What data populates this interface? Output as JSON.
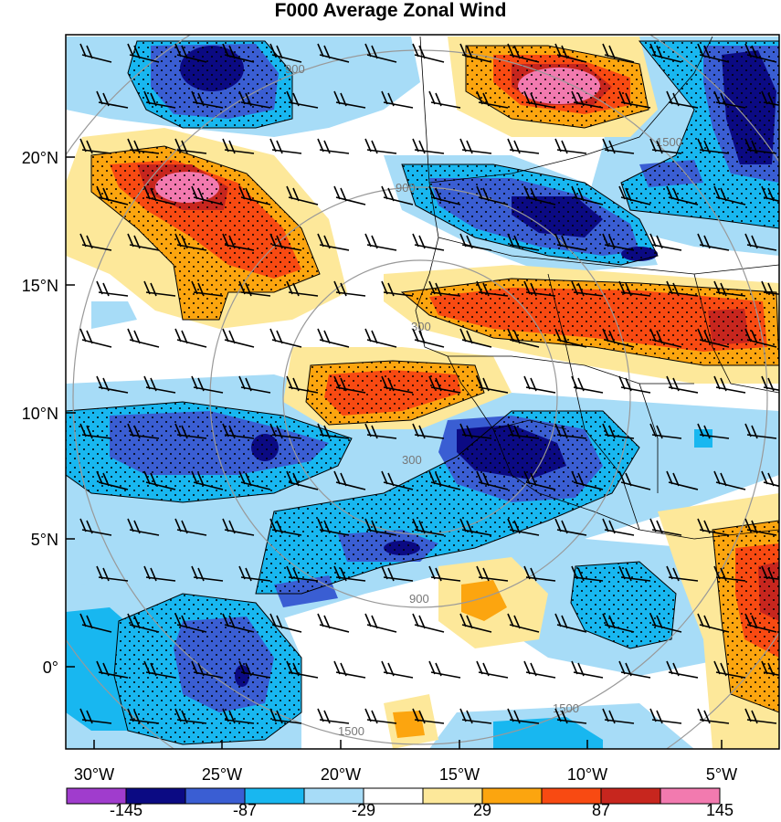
{
  "title": "F000 Average Zonal Wind",
  "lat_labels": [
    "20°N",
    "15°N",
    "10°N",
    "5°N",
    "0°"
  ],
  "lon_labels": [
    "30°W",
    "25°W",
    "20°W",
    "15°W",
    "10°W",
    "5°W"
  ],
  "colorbar": {
    "colors": [
      "#a03ccd",
      "#0b0a83",
      "#3a5ed3",
      "#18b7f0",
      "#a7dcf7",
      "#ffffff",
      "#fde89a",
      "#fca50f",
      "#f84a12",
      "#c7261e",
      "#f27aaf"
    ],
    "labels": [
      "-145",
      "-87",
      "-29",
      "29",
      "87",
      "145"
    ]
  },
  "range_rings": {
    "labels": [
      "300",
      "900",
      "1500"
    ],
    "color": "#999999"
  }
}
